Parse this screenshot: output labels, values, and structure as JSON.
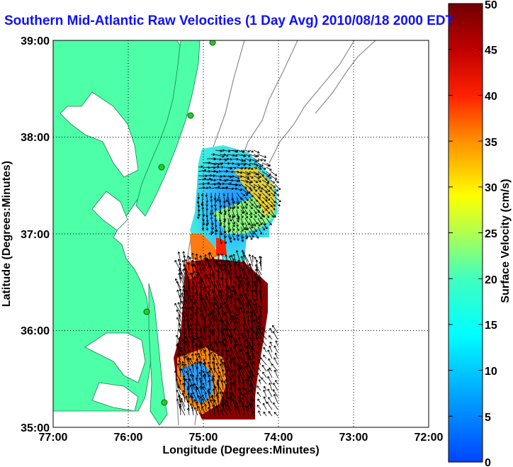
{
  "title": "Southern Mid-Atlantic Raw Velocities (1 Day Avg) 2010/08/18 2000 EDT",
  "x_axis": {
    "label": "Longitude (Degrees:Minutes)",
    "ticks": [
      "77:00",
      "76:00",
      "75:00",
      "74:00",
      "73:00",
      "72:00"
    ]
  },
  "y_axis": {
    "label": "Latitude (Degrees:Minutes)",
    "ticks": [
      "39:00",
      "38:00",
      "37:00",
      "36:00",
      "35:00"
    ]
  },
  "colorbar": {
    "label": "Surface Velocity (cm/s)",
    "ticks": [
      "50",
      "45",
      "40",
      "35",
      "30",
      "25",
      "20",
      "15",
      "10",
      "5",
      "0"
    ],
    "colors": [
      "#7f0000",
      "#ff0000",
      "#ff8000",
      "#ffff00",
      "#80ff80",
      "#00ffff",
      "#0080ff",
      "#0000ff"
    ]
  },
  "colors": {
    "land": "#4dffa6",
    "water": "#ffffff",
    "grid": "#000000",
    "bathymetry": "#808080",
    "station": "#22cc22"
  }
}
